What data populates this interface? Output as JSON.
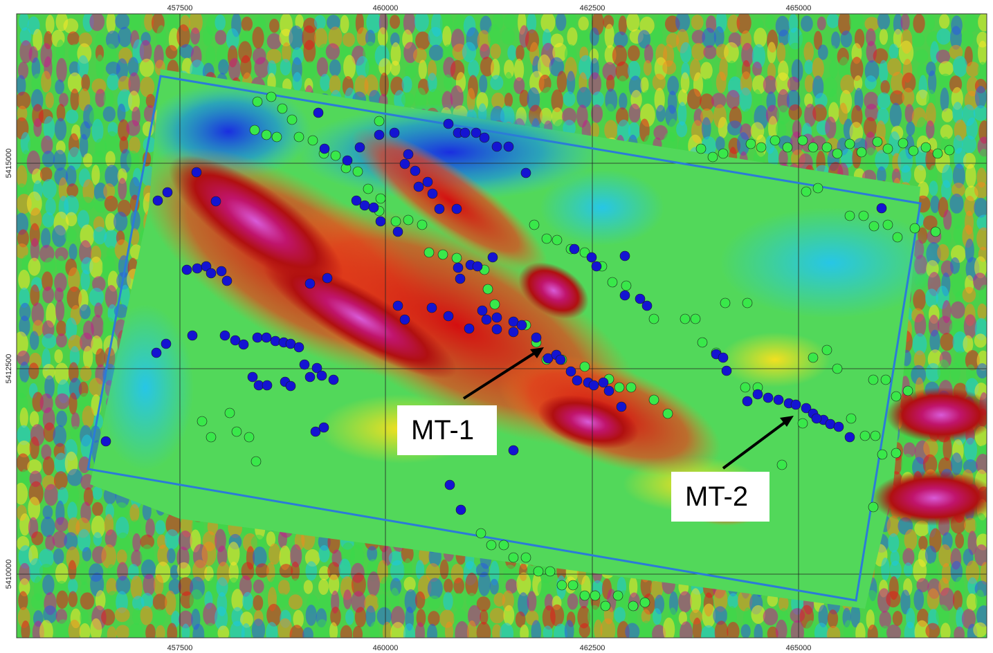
{
  "map": {
    "x_ticks": [
      "457500",
      "460000",
      "462500",
      "465000"
    ],
    "y_ticks": [
      "5415000",
      "5412500",
      "5410000"
    ],
    "legend": {
      "blue_points_color": "#1414d2",
      "green_points_color": "#39e84a",
      "survey_outline_color": "#2b7bd8"
    },
    "callouts": [
      {
        "label": "MT-1"
      },
      {
        "label": "MT-2"
      }
    ]
  }
}
